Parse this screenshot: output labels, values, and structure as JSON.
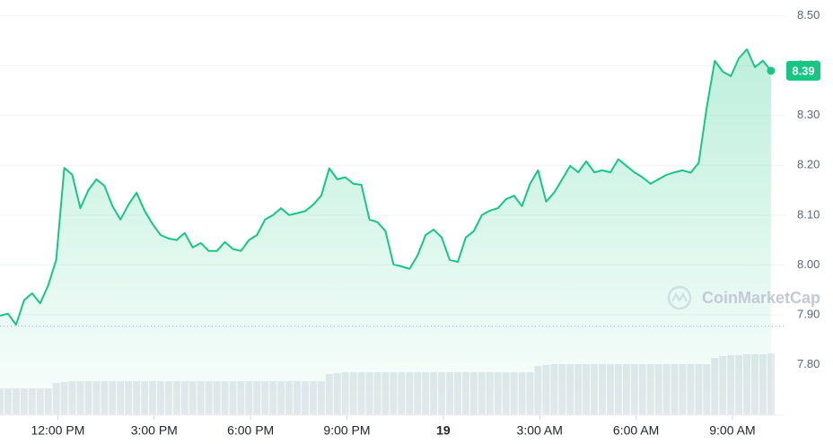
{
  "chart_data": {
    "type": "line",
    "color": "#16c784",
    "watermark": "CoinMarketCap",
    "x": [
      10.2,
      10.45,
      10.7,
      10.95,
      11.2,
      11.45,
      11.7,
      11.95,
      12.2,
      12.45,
      12.7,
      12.95,
      13.2,
      13.45,
      13.7,
      13.95,
      14.2,
      14.45,
      14.7,
      14.95,
      15.2,
      15.45,
      15.7,
      15.95,
      16.2,
      16.45,
      16.7,
      16.95,
      17.2,
      17.45,
      17.7,
      17.95,
      18.2,
      18.45,
      18.7,
      18.95,
      19.2,
      19.45,
      19.7,
      19.95,
      20.2,
      20.45,
      20.7,
      20.95,
      21.2,
      21.45,
      21.7,
      21.95,
      22.2,
      22.45,
      22.7,
      22.95,
      23.2,
      23.45,
      23.7,
      23.95,
      24.2,
      24.45,
      24.7,
      24.95,
      25.2,
      25.45,
      25.7,
      25.95,
      26.2,
      26.45,
      26.7,
      26.95,
      27.2,
      27.45,
      27.7,
      27.95,
      28.2,
      28.45,
      28.7,
      28.95,
      29.2,
      29.45,
      29.7,
      29.95,
      30.2,
      30.45,
      30.7,
      30.95,
      31.2,
      31.45,
      31.7,
      31.95,
      32.2,
      32.45,
      32.7,
      32.95,
      33.2,
      33.45,
      33.7,
      33.95,
      34.2
    ],
    "values": [
      7.898,
      7.902,
      7.88,
      7.929,
      7.943,
      7.923,
      7.959,
      8.01,
      8.195,
      8.181,
      8.114,
      8.15,
      8.172,
      8.159,
      8.118,
      8.091,
      8.121,
      8.145,
      8.109,
      8.082,
      8.06,
      8.053,
      8.05,
      8.064,
      8.035,
      8.044,
      8.028,
      8.028,
      8.046,
      8.032,
      8.028,
      8.05,
      8.06,
      8.091,
      8.1,
      8.114,
      8.1,
      8.104,
      8.108,
      8.121,
      8.139,
      8.194,
      8.172,
      8.176,
      8.163,
      8.161,
      8.091,
      8.086,
      8.068,
      8.001,
      7.997,
      7.992,
      8.019,
      8.06,
      8.071,
      8.055,
      8.01,
      8.006,
      8.055,
      8.068,
      8.1,
      8.109,
      8.114,
      8.132,
      8.139,
      8.118,
      8.163,
      8.19,
      8.127,
      8.145,
      8.172,
      8.199,
      8.186,
      8.208,
      8.186,
      8.19,
      8.186,
      8.212,
      8.199,
      8.186,
      8.176,
      8.163,
      8.172,
      8.181,
      8.186,
      8.19,
      8.185,
      8.205,
      8.316,
      8.41,
      8.388,
      8.379,
      8.415,
      8.433,
      8.397,
      8.41,
      8.39
    ],
    "volume": [
      30,
      30,
      30,
      30,
      30,
      30,
      30,
      36,
      37,
      38,
      38,
      38,
      38,
      38,
      38,
      38,
      38,
      38,
      38,
      38,
      38,
      38,
      38,
      38,
      38,
      38,
      38,
      38,
      38,
      38,
      38,
      38,
      38,
      38,
      38,
      38,
      38,
      38,
      38,
      38,
      38,
      46,
      47,
      48,
      48,
      48,
      48,
      48,
      48,
      48,
      48,
      48,
      48,
      48,
      48,
      48,
      48,
      48,
      48,
      48,
      48,
      48,
      48,
      48,
      48,
      48,
      48,
      55,
      56,
      57,
      57,
      57,
      57,
      57,
      57,
      57,
      57,
      57,
      57,
      57,
      57,
      57,
      57,
      57,
      57,
      57,
      57,
      57,
      57,
      64,
      66,
      67,
      67,
      68,
      68,
      68,
      69
    ],
    "volume_lim": [
      0,
      100
    ],
    "open_price": 7.877,
    "current_price": 8.39,
    "xlim": [
      10.2,
      34.65
    ],
    "xticks": [
      {
        "value": 12,
        "label": "12:00 PM"
      },
      {
        "value": 15,
        "label": "3:00 PM"
      },
      {
        "value": 18,
        "label": "6:00 PM"
      },
      {
        "value": 21,
        "label": "9:00 PM"
      },
      {
        "value": 24,
        "label": "19"
      },
      {
        "value": 27,
        "label": "3:00 AM"
      },
      {
        "value": 30,
        "label": "6:00 AM"
      },
      {
        "value": 33,
        "label": "9:00 AM"
      }
    ],
    "ylim": [
      7.698,
      8.532
    ],
    "yticks": [
      {
        "value": 7.8,
        "label": "7.80"
      },
      {
        "value": 7.9,
        "label": "7.90"
      },
      {
        "value": 8.0,
        "label": "8.00"
      },
      {
        "value": 8.1,
        "label": "8.10"
      },
      {
        "value": 8.2,
        "label": "8.20"
      },
      {
        "value": 8.3,
        "label": "8.30"
      },
      {
        "value": 8.4,
        "label": "8.40"
      },
      {
        "value": 8.5,
        "label": "8.50"
      }
    ],
    "grid": true
  }
}
